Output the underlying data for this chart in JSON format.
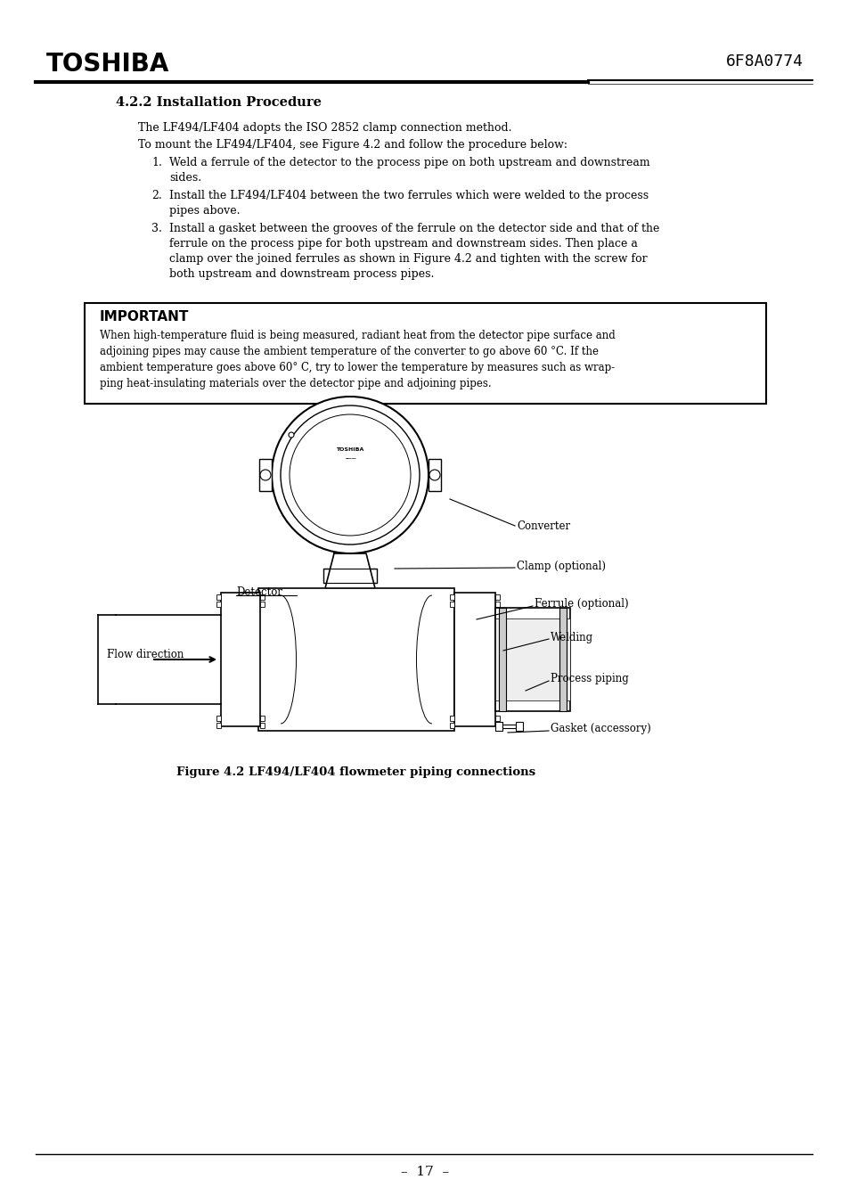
{
  "page_bg": "#ffffff",
  "header_logo": "TOSHIBA",
  "header_doc_num": "6F8A0774",
  "section_title": "4.2.2 Installation Procedure",
  "para1": "The LF494/LF404 adopts the ISO 2852 clamp connection method.",
  "para2": "To mount the LF494/LF404, see Figure 4.2 and follow the procedure below:",
  "step1": "Weld a ferrule of the detector to the process pipe on both upstream and downstream\nsides.",
  "step2": "Install the LF494/LF404 between the two ferrules which were welded to the process\npipes above.",
  "step3": "Install a gasket between the grooves of the ferrule on the detector side and that of the\nferrule on the process pipe for both upstream and downstream sides. Then place a\nclamp over the joined ferrules as shown in Figure 4.2 and tighten with the screw for\nboth upstream and downstream process pipes.",
  "important_title": "IMPORTANT",
  "important_line1": "When high-temperature fluid is being measured, radiant heat from the detector pipe surface and",
  "important_line2": "adjoining pipes may cause the ambient temperature of the converter to go above 60 °C. If the",
  "important_line3": "ambient temperature goes above 60° C, try to lower the temperature by measures such as wrap-",
  "important_line4": "ping heat-insulating materials over the detector pipe and adjoining pipes.",
  "figure_caption": "Figure 4.2 LF494/LF404 flowmeter piping connections",
  "lbl_converter": "Converter",
  "lbl_clamp": "Clamp (optional)",
  "lbl_detector": "Detector",
  "lbl_ferrule": "Ferrule (optional)",
  "lbl_welding": "Welding",
  "lbl_flow": "Flow direction",
  "lbl_process": "Process piping",
  "lbl_gasket": "Gasket (accessory)",
  "page_number": "17"
}
